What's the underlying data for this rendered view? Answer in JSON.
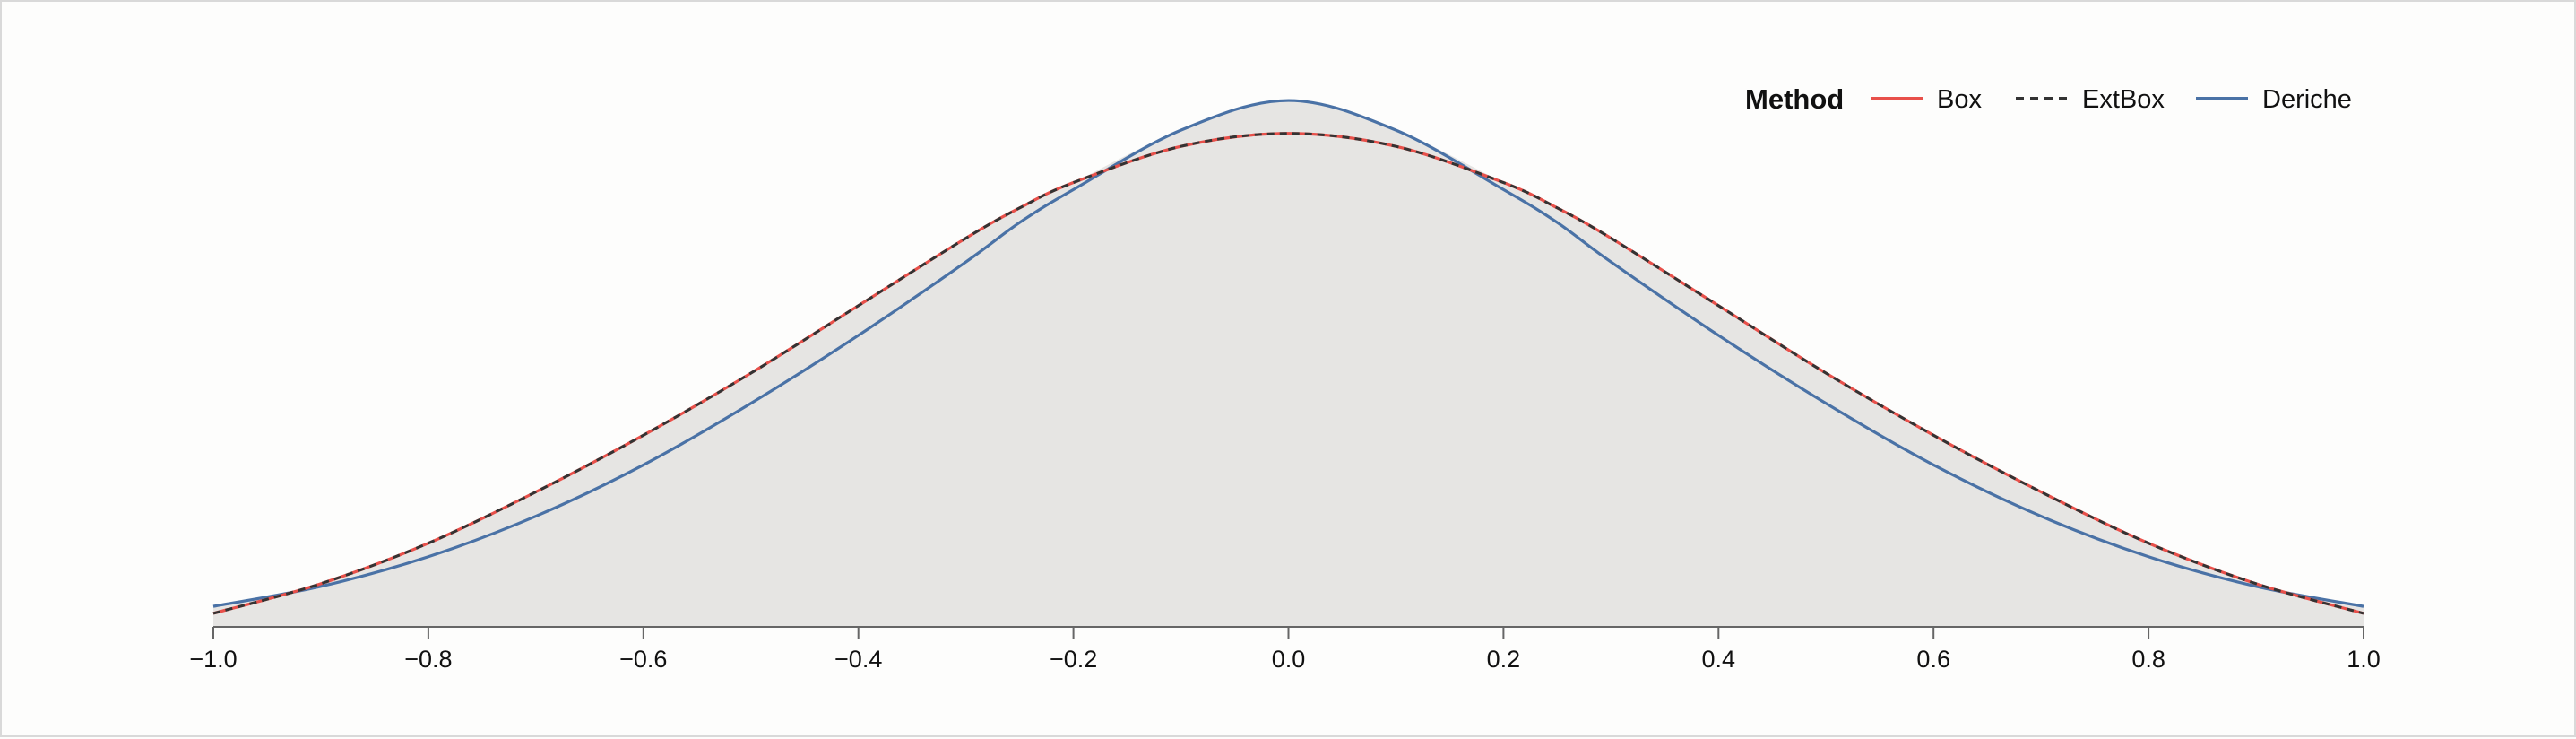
{
  "chart_data": {
    "type": "line",
    "title": "",
    "xlabel": "",
    "ylabel": "",
    "xlim": [
      -1.0,
      1.0
    ],
    "ylim": [
      0,
      1.0
    ],
    "grid": false,
    "area_fill": true,
    "area_fill_color": "#e6e5e3",
    "x_ticks": [
      -1.0,
      -0.8,
      -0.6,
      -0.4,
      -0.2,
      0.0,
      0.2,
      0.4,
      0.6,
      0.8,
      1.0
    ],
    "x_tick_labels": [
      "−1.0",
      "−0.8",
      "−0.6",
      "−0.4",
      "−0.2",
      "0.0",
      "0.2",
      "0.4",
      "0.6",
      "0.8",
      "1.0"
    ],
    "legend": {
      "title": "Method",
      "position": "top-right"
    },
    "series": [
      {
        "name": "Box",
        "color": "#e8504a",
        "dash": "solid",
        "x": [
          -1.0,
          -0.9,
          -0.8,
          -0.7,
          -0.6,
          -0.5,
          -0.4,
          -0.3,
          -0.25,
          -0.2,
          -0.1,
          0.0,
          0.1,
          0.2,
          0.25,
          0.3,
          0.4,
          0.5,
          0.6,
          0.7,
          0.8,
          0.9,
          1.0
        ],
        "y": [
          0.025,
          0.08,
          0.155,
          0.25,
          0.355,
          0.47,
          0.595,
          0.72,
          0.776,
          0.823,
          0.89,
          0.914,
          0.89,
          0.823,
          0.776,
          0.72,
          0.595,
          0.47,
          0.355,
          0.25,
          0.155,
          0.08,
          0.025
        ]
      },
      {
        "name": "ExtBox",
        "color": "#333333",
        "dash": "dashed",
        "x": [
          -1.0,
          -0.9,
          -0.8,
          -0.7,
          -0.6,
          -0.5,
          -0.4,
          -0.3,
          -0.25,
          -0.2,
          -0.1,
          0.0,
          0.1,
          0.2,
          0.25,
          0.3,
          0.4,
          0.5,
          0.6,
          0.7,
          0.8,
          0.9,
          1.0
        ],
        "y": [
          0.025,
          0.08,
          0.155,
          0.25,
          0.355,
          0.47,
          0.595,
          0.72,
          0.776,
          0.823,
          0.89,
          0.914,
          0.89,
          0.823,
          0.776,
          0.72,
          0.595,
          0.47,
          0.355,
          0.25,
          0.155,
          0.08,
          0.025
        ]
      },
      {
        "name": "Deriche",
        "color": "#4a72a6",
        "dash": "solid",
        "x": [
          -1.0,
          -0.9,
          -0.8,
          -0.7,
          -0.6,
          -0.5,
          -0.4,
          -0.3,
          -0.25,
          -0.2,
          -0.1,
          0.0,
          0.1,
          0.2,
          0.25,
          0.3,
          0.4,
          0.5,
          0.6,
          0.7,
          0.8,
          0.9,
          1.0
        ],
        "y": [
          0.038,
          0.075,
          0.13,
          0.205,
          0.3,
          0.414,
          0.54,
          0.676,
          0.749,
          0.81,
          0.92,
          0.975,
          0.92,
          0.81,
          0.749,
          0.676,
          0.54,
          0.414,
          0.3,
          0.205,
          0.13,
          0.075,
          0.038
        ]
      }
    ]
  }
}
